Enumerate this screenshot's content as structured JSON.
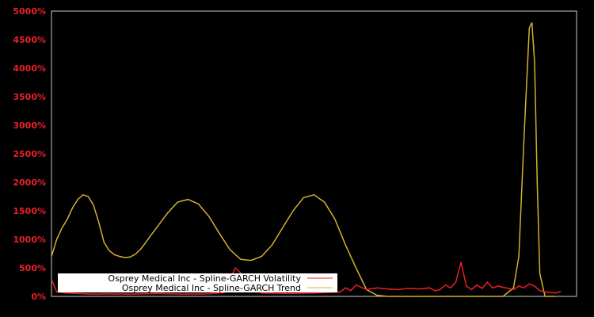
{
  "chart_data": {
    "type": "line",
    "title": "",
    "xlabel": "",
    "ylabel": "",
    "ylim": [
      0,
      5000
    ],
    "y_ticks": [
      "0%",
      "500%",
      "1000%",
      "1500%",
      "2000%",
      "2500%",
      "3000%",
      "3500%",
      "4000%",
      "4500%",
      "5000%"
    ],
    "grid": false,
    "legend_position": "lower left",
    "colors": {
      "background": "#000000",
      "axis": "#c8c8c8",
      "tick_label": "#e8202a",
      "volatility": "#e8202a",
      "trend": "#d4b030"
    },
    "x_index_range": [
      0,
      100
    ],
    "series": [
      {
        "name": "Osprey Medical Inc - Spline-GARCH Volatility",
        "color": "#e8202a",
        "x": [
          0,
          1,
          2,
          3,
          5,
          8,
          10,
          15,
          20,
          25,
          30,
          33,
          35,
          40,
          45,
          50,
          55,
          56,
          57,
          58,
          60,
          62,
          64,
          66,
          68,
          70,
          72,
          73,
          74,
          75,
          76,
          77,
          78,
          79,
          80,
          81,
          82,
          83,
          84,
          85,
          86,
          87,
          88,
          89,
          90,
          91,
          92,
          93,
          94,
          95,
          96,
          97
        ],
        "values": [
          300,
          80,
          70,
          60,
          50,
          40,
          45,
          40,
          50,
          40,
          45,
          70,
          500,
          60,
          50,
          60,
          80,
          150,
          100,
          200,
          120,
          150,
          130,
          120,
          140,
          130,
          150,
          100,
          120,
          200,
          150,
          250,
          600,
          180,
          120,
          200,
          140,
          250,
          150,
          180,
          160,
          140,
          120,
          180,
          150,
          220,
          180,
          100,
          80,
          70,
          60,
          90
        ]
      },
      {
        "name": "Osprey Medical Inc - Spline-GARCH Trend",
        "color": "#d4b030",
        "x": [
          0,
          1,
          2,
          3,
          4,
          5,
          6,
          7,
          8,
          9,
          10,
          11,
          12,
          13,
          14,
          15,
          16,
          17,
          18,
          19,
          20,
          22,
          24,
          26,
          28,
          30,
          32,
          34,
          36,
          38,
          40,
          42,
          44,
          46,
          48,
          50,
          52,
          54,
          56,
          58,
          60,
          62,
          64,
          66,
          68,
          70,
          72,
          74,
          76,
          78,
          80,
          82,
          84,
          86,
          88,
          89,
          90,
          91,
          91.5,
          92,
          92.5,
          93,
          94,
          95,
          96
        ],
        "values": [
          700,
          1000,
          1200,
          1350,
          1550,
          1700,
          1780,
          1750,
          1600,
          1300,
          950,
          800,
          730,
          700,
          680,
          690,
          740,
          830,
          950,
          1080,
          1200,
          1450,
          1650,
          1700,
          1620,
          1400,
          1100,
          820,
          650,
          630,
          700,
          900,
          1200,
          1500,
          1730,
          1780,
          1650,
          1350,
          900,
          500,
          120,
          20,
          0,
          0,
          0,
          0,
          0,
          0,
          0,
          0,
          0,
          0,
          0,
          0,
          150,
          700,
          2800,
          4700,
          4800,
          4100,
          2000,
          400,
          0,
          0,
          0
        ]
      }
    ]
  },
  "legend": {
    "items": [
      {
        "label": "Osprey Medical Inc - Spline-GARCH Volatility",
        "color": "#e8202a"
      },
      {
        "label": "Osprey Medical Inc - Spline-GARCH Trend",
        "color": "#d4b030"
      }
    ]
  }
}
